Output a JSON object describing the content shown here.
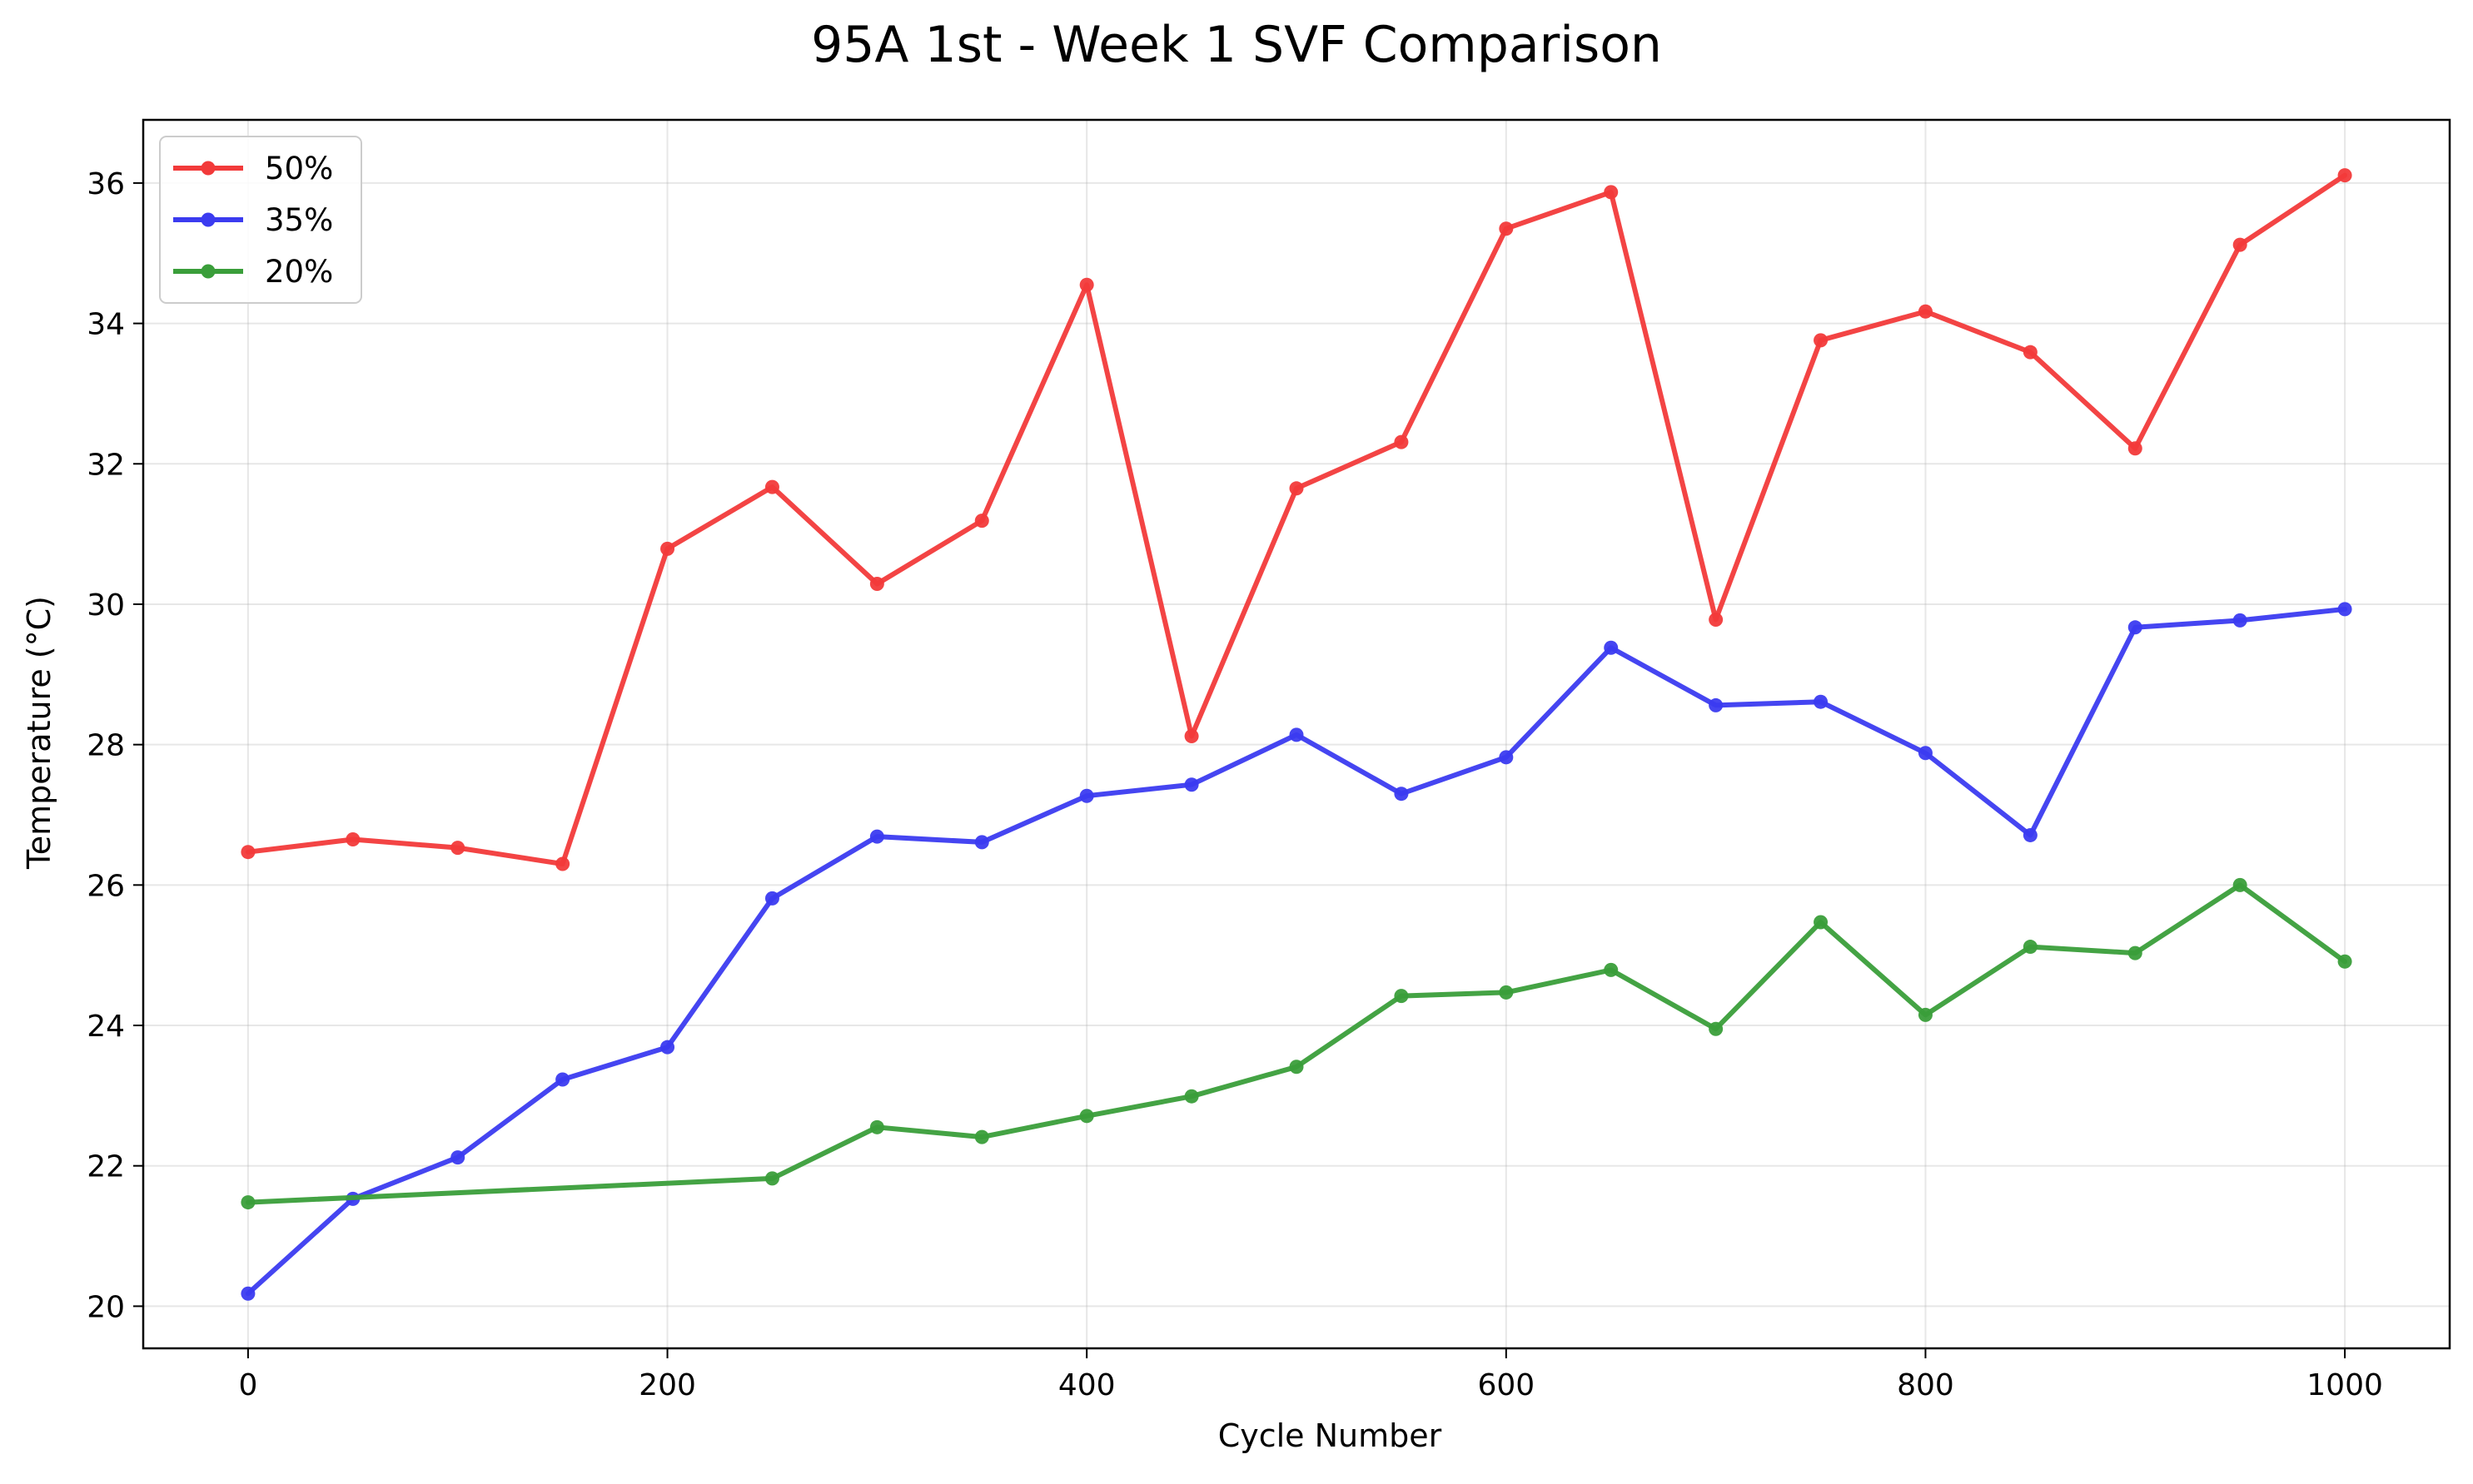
{
  "chart_data": {
    "type": "line",
    "title": "95A 1st - Week 1 SVF Comparison",
    "xlabel": "Cycle Number",
    "ylabel": "Temperature (°C)",
    "xlim": [
      -50,
      1050
    ],
    "ylim": [
      19.4,
      36.9
    ],
    "xticks": [
      0,
      200,
      400,
      600,
      800,
      1000
    ],
    "yticks": [
      20,
      22,
      24,
      26,
      28,
      30,
      32,
      34,
      36
    ],
    "grid": true,
    "legend_position": "top-left",
    "series": [
      {
        "name": "50%",
        "color": "#f23a3a",
        "x": [
          0,
          50,
          100,
          150,
          200,
          250,
          300,
          350,
          400,
          450,
          500,
          550,
          600,
          650,
          700,
          750,
          800,
          850,
          900,
          950,
          1000
        ],
        "y": [
          26.47,
          26.65,
          26.53,
          26.3,
          30.79,
          31.67,
          30.29,
          31.19,
          34.55,
          28.12,
          31.65,
          32.31,
          35.35,
          35.87,
          29.78,
          33.76,
          34.17,
          33.59,
          32.22,
          35.12,
          36.11
        ]
      },
      {
        "name": "35%",
        "color": "#3b3bf0",
        "x": [
          0,
          50,
          100,
          150,
          200,
          250,
          300,
          350,
          400,
          450,
          500,
          550,
          600,
          650,
          700,
          750,
          800,
          850,
          900,
          950,
          1000
        ],
        "y": [
          20.18,
          21.53,
          22.12,
          23.23,
          23.69,
          25.81,
          26.69,
          26.61,
          27.27,
          27.43,
          28.14,
          27.3,
          27.82,
          29.38,
          28.56,
          28.61,
          27.88,
          26.71,
          29.67,
          29.77,
          29.93
        ]
      },
      {
        "name": "20%",
        "color": "#3a9e3a",
        "x": [
          0,
          250,
          300,
          350,
          400,
          450,
          500,
          550,
          600,
          650,
          700,
          750,
          800,
          850,
          900,
          950,
          1000
        ],
        "y": [
          21.48,
          21.82,
          22.55,
          22.41,
          22.71,
          22.99,
          23.41,
          24.42,
          24.47,
          24.79,
          23.95,
          25.47,
          24.15,
          25.12,
          25.03,
          26.0,
          24.91
        ]
      }
    ]
  }
}
